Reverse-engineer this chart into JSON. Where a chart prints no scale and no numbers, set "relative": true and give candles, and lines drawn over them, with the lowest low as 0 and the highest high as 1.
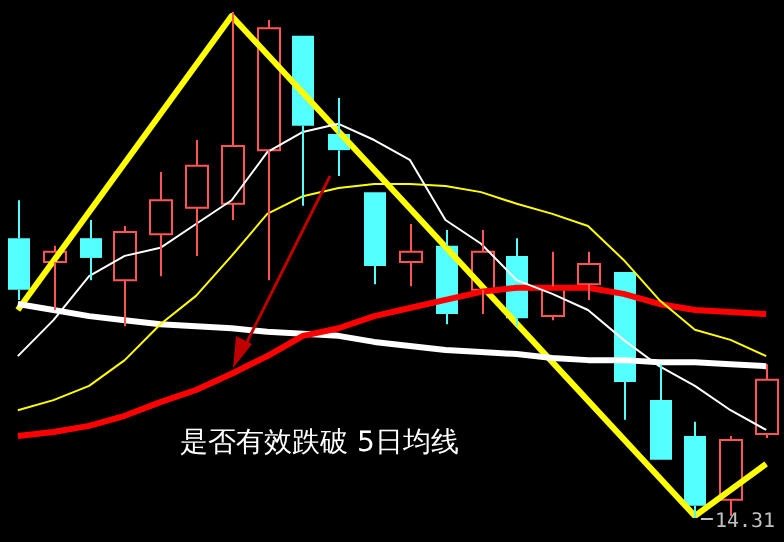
{
  "chart_data": {
    "type": "candlestick",
    "relative": true,
    "legend": false,
    "categories": [
      null,
      null,
      null,
      null,
      null,
      null,
      null,
      null,
      null,
      null,
      null,
      null,
      null,
      null,
      null,
      null,
      null,
      null,
      null,
      null,
      null,
      null
    ],
    "ohlc": [
      [
        0.553,
        0.628,
        0.431,
        0.451
      ],
      [
        0.506,
        0.538,
        0.411,
        0.526
      ],
      [
        0.553,
        0.589,
        0.47,
        0.514
      ],
      [
        0.47,
        0.577,
        0.379,
        0.565
      ],
      [
        0.561,
        0.684,
        0.478,
        0.628
      ],
      [
        0.613,
        0.747,
        0.518,
        0.696
      ],
      [
        0.621,
        1.0,
        0.589,
        0.735
      ],
      [
        0.727,
        0.984,
        0.47,
        0.968
      ],
      [
        0.953,
        0.953,
        0.617,
        0.775
      ],
      [
        0.759,
        0.83,
        0.676,
        0.727
      ],
      [
        0.644,
        0.644,
        0.462,
        0.498
      ],
      [
        0.506,
        0.581,
        0.458,
        0.526
      ],
      [
        0.538,
        0.569,
        0.383,
        0.403
      ],
      [
        0.451,
        0.569,
        0.403,
        0.526
      ],
      [
        0.518,
        0.553,
        0.379,
        0.395
      ],
      [
        0.399,
        0.526,
        0.391,
        0.458
      ],
      [
        0.462,
        0.526,
        0.431,
        0.502
      ],
      [
        0.486,
        0.486,
        0.194,
        0.269
      ],
      [
        0.233,
        0.304,
        0.115,
        0.115
      ],
      [
        0.162,
        0.19,
        0,
        0.024
      ],
      [
        0.036,
        0.162,
        0.004,
        0.154
      ],
      [
        0.166,
        0.304,
        0.158,
        0.273
      ]
    ],
    "colors": [
      "#54ffff",
      "#ff5555",
      "#54ffff",
      "#ff5555",
      "#ff5555",
      "#ff5555",
      "#ff5555",
      "#ff5555",
      "#54ffff",
      "#54ffff",
      "#54ffff",
      "#ff5555",
      "#54ffff",
      "#ff5555",
      "#54ffff",
      "#ff5555",
      "#ff5555",
      "#54ffff",
      "#54ffff",
      "#54ffff",
      "#ff5555",
      "#ff5555"
    ],
    "series": [
      {
        "type": "line",
        "color": "#ffffff",
        "values": [
          0.32,
          0.391,
          0.478,
          0.518,
          0.534,
          0.581,
          0.628,
          0.723,
          0.763,
          0.779,
          0.747,
          0.708,
          0.589,
          0.542,
          0.47,
          0.443,
          0.411,
          0.352,
          0.3,
          0.261,
          0.213,
          0.174
        ]
      },
      {
        "type": "line",
        "color": "#ffff00",
        "values": [
          0.213,
          0.233,
          0.261,
          0.312,
          0.383,
          0.439,
          0.518,
          0.601,
          0.636,
          0.652,
          0.66,
          0.66,
          0.656,
          0.644,
          0.621,
          0.601,
          0.577,
          0.51,
          0.431,
          0.372,
          0.352,
          0.32
        ]
      },
      {
        "type": "line",
        "color": "#ff0000",
        "values": [
          0.162,
          0.17,
          0.182,
          0.202,
          0.229,
          0.253,
          0.285,
          0.32,
          0.36,
          0.375,
          0.399,
          0.415,
          0.431,
          0.447,
          0.455,
          0.455,
          0.455,
          0.443,
          0.423,
          0.411,
          0.407,
          0.403
        ]
      },
      {
        "type": "line",
        "color": "#ffffff",
        "values": [
          0.423,
          0.411,
          0.399,
          0.391,
          0.383,
          0.379,
          0.375,
          0.368,
          0.364,
          0.36,
          0.348,
          0.34,
          0.332,
          0.328,
          0.324,
          0.316,
          0.312,
          0.312,
          0.308,
          0.308,
          0.304,
          0.3
        ]
      },
      {
        "type": "line",
        "color": "#ffff00",
        "values": [
          0.411,
          null,
          null,
          null,
          null,
          null,
          0.992,
          null,
          null,
          null,
          null,
          null,
          null,
          null,
          null,
          null,
          null,
          null,
          null,
          0.004,
          null,
          0.107
        ]
      }
    ],
    "annotations": [
      "是否有效跌破 5日均线",
      "14.31"
    ]
  }
}
